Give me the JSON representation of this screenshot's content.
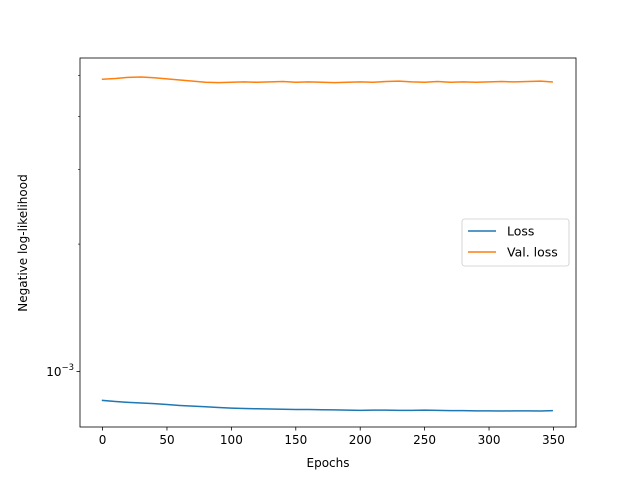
{
  "chart_data": {
    "type": "line",
    "title": "",
    "xlabel": "Epochs",
    "ylabel": "Negative log-likelihood",
    "yscale": "log",
    "xlim": [
      -17.5,
      367.5
    ],
    "ylim": [
      0.00074,
      0.0055
    ],
    "x_ticks": [
      0,
      50,
      100,
      150,
      200,
      250,
      300,
      350
    ],
    "x_tick_labels": [
      "0",
      "50",
      "100",
      "150",
      "200",
      "250",
      "300",
      "350"
    ],
    "y_major_ticks": [
      0.001
    ],
    "y_tick_labels": [
      {
        "base": "10",
        "exponent": "−3"
      }
    ],
    "y_minor_ticks": [
      0.002,
      0.003,
      0.004,
      0.005
    ],
    "grid": false,
    "legend_position": "center-right",
    "series": [
      {
        "name": "Loss",
        "color": "#1f77b4",
        "x": [
          0,
          10,
          20,
          30,
          40,
          50,
          60,
          70,
          80,
          90,
          100,
          110,
          120,
          130,
          140,
          150,
          160,
          170,
          180,
          190,
          200,
          210,
          220,
          230,
          240,
          250,
          260,
          270,
          280,
          290,
          300,
          310,
          320,
          330,
          340,
          349
        ],
        "y": [
          0.000855,
          0.00085,
          0.000846,
          0.000843,
          0.00084,
          0.000836,
          0.000832,
          0.000829,
          0.000826,
          0.000823,
          0.00082,
          0.000818,
          0.000817,
          0.000816,
          0.000815,
          0.000814,
          0.000814,
          0.000813,
          0.000812,
          0.000811,
          0.00081,
          0.000811,
          0.000811,
          0.00081,
          0.00081,
          0.000811,
          0.00081,
          0.000809,
          0.000809,
          0.000808,
          0.000808,
          0.000807,
          0.000808,
          0.000808,
          0.000807,
          0.000809
        ]
      },
      {
        "name": "Val. loss",
        "color": "#ff7f0e",
        "x": [
          0,
          10,
          20,
          30,
          40,
          50,
          60,
          70,
          80,
          90,
          100,
          110,
          120,
          130,
          140,
          150,
          160,
          170,
          180,
          190,
          200,
          210,
          220,
          230,
          240,
          250,
          260,
          270,
          280,
          290,
          300,
          310,
          320,
          330,
          340,
          349
        ],
        "y": [
          0.0049,
          0.00492,
          0.00495,
          0.00496,
          0.00494,
          0.00491,
          0.00488,
          0.00485,
          0.00482,
          0.00481,
          0.00482,
          0.00483,
          0.00482,
          0.00483,
          0.00484,
          0.00482,
          0.00483,
          0.00482,
          0.00481,
          0.00482,
          0.00483,
          0.00482,
          0.00484,
          0.00485,
          0.00483,
          0.00482,
          0.00484,
          0.00482,
          0.00483,
          0.00482,
          0.00483,
          0.00484,
          0.00483,
          0.00484,
          0.00485,
          0.00483
        ]
      }
    ]
  }
}
